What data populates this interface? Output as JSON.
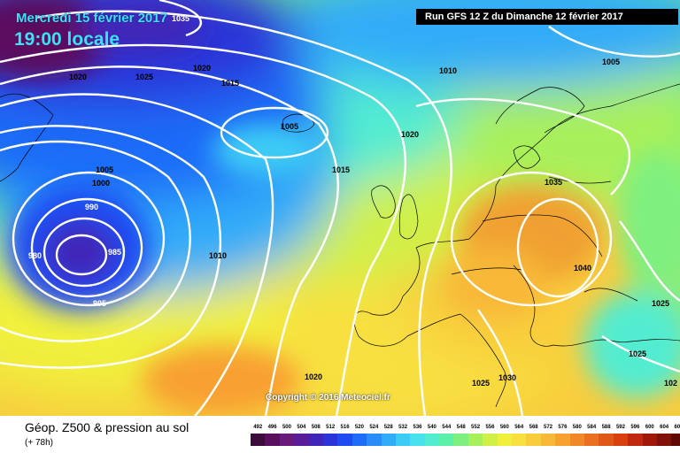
{
  "header": {
    "date_title": "Mercredi 15 février 2017",
    "time_title": "19:00 locale",
    "run_info": "Run GFS 12 Z du Dimanche 12 février 2017"
  },
  "footer": {
    "product_title": "Géop. Z500 & pression au sol",
    "lead_time": "(+ 78h)",
    "copyright": "Copyright © 2016 Meteociel.fr"
  },
  "isobar_labels": [
    "1035",
    "1020",
    "1025",
    "1020",
    "1015",
    "1010",
    "1005",
    "1005",
    "1020",
    "1015",
    "1005",
    "1000",
    "990",
    "980",
    "985",
    "995",
    "1010",
    "1035",
    "1040",
    "1025",
    "1025",
    "1020",
    "1025",
    "1030",
    "102"
  ],
  "color_scale": {
    "levels": [
      "492",
      "496",
      "500",
      "504",
      "508",
      "512",
      "516",
      "520",
      "524",
      "528",
      "532",
      "536",
      "540",
      "544",
      "548",
      "552",
      "556",
      "560",
      "564",
      "568",
      "572",
      "576",
      "580",
      "584",
      "588",
      "592",
      "596",
      "600",
      "604",
      "608",
      "612"
    ],
    "colors": [
      "#3d0c3a",
      "#5a0f5e",
      "#6a1a7a",
      "#5a1d9a",
      "#4026b8",
      "#2a34d8",
      "#1e4cf2",
      "#1f6cf8",
      "#2a8cf8",
      "#31acf8",
      "#3cccf5",
      "#48e0ec",
      "#52ecd0",
      "#5cf0a8",
      "#7ef080",
      "#a8f05a",
      "#d0f048",
      "#f0f03c",
      "#f8e040",
      "#f8cc3c",
      "#f8b838",
      "#f8a030",
      "#f08828",
      "#e87020",
      "#e05818",
      "#d84010",
      "#c02810",
      "#a01808",
      "#801008",
      "#600806",
      "#300404"
    ]
  }
}
